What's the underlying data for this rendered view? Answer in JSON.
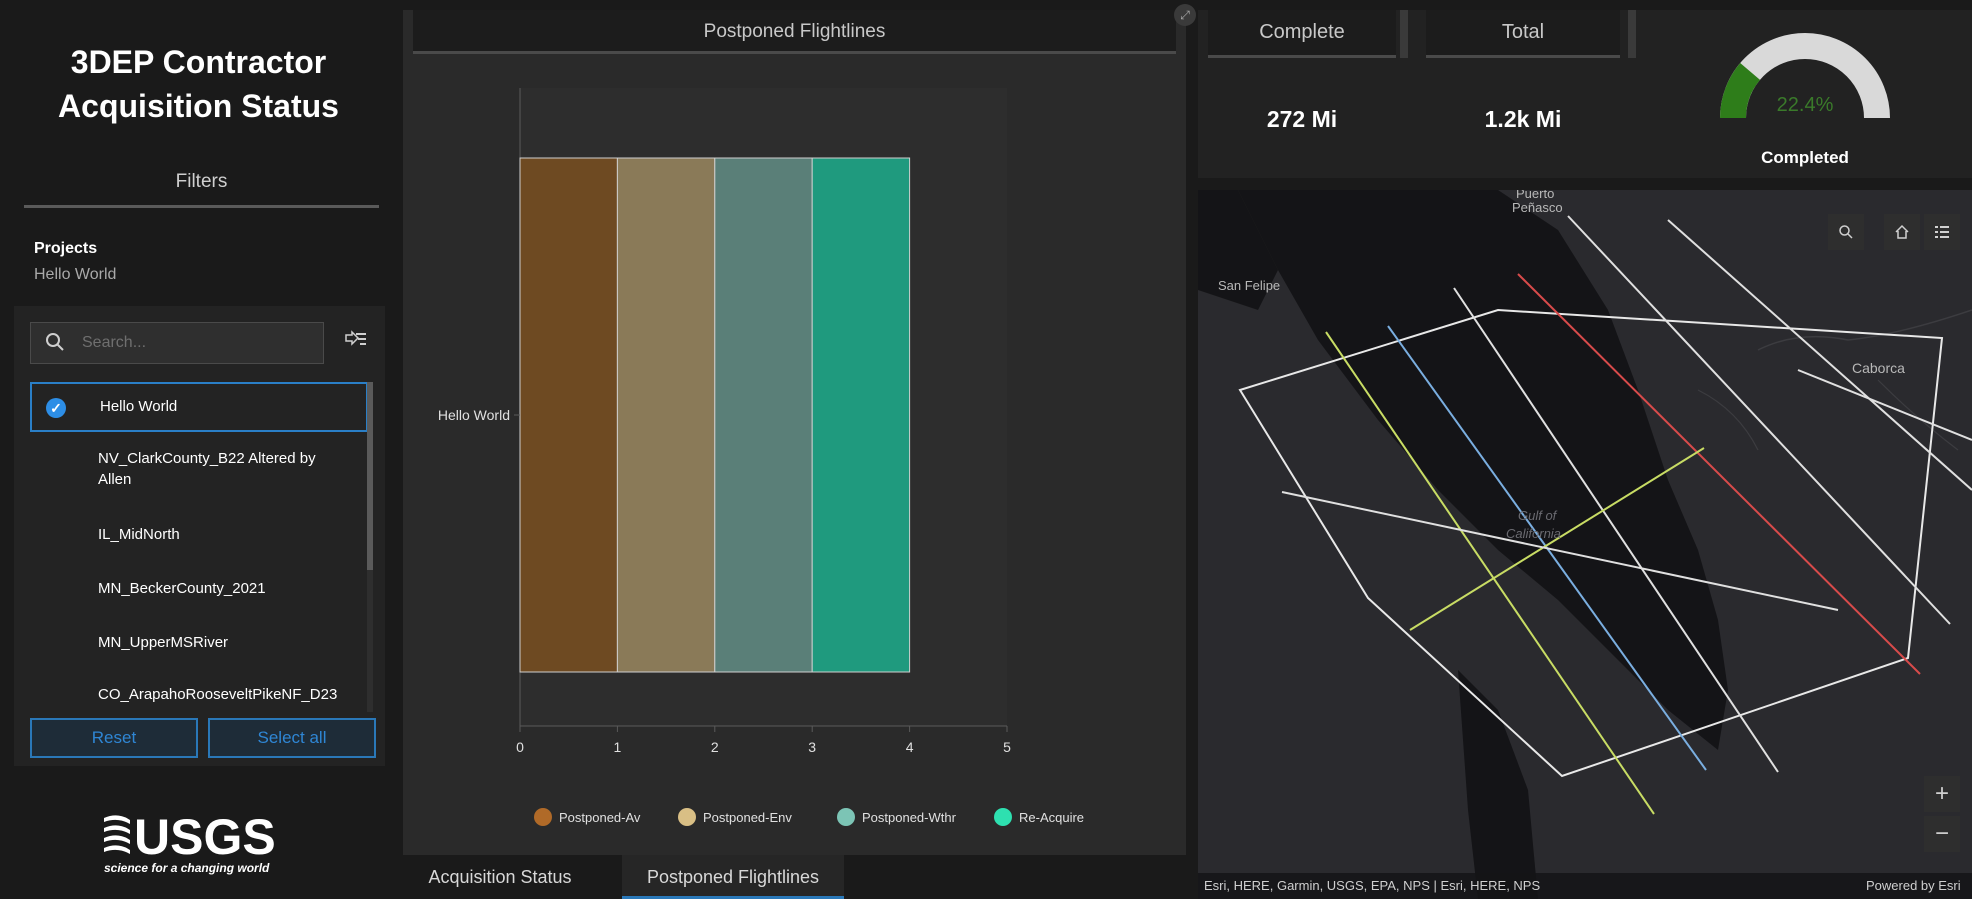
{
  "sidebar": {
    "title_line1": "3DEP Contractor",
    "title_line2": "Acquisition Status",
    "filters_header": "Filters",
    "projects_label": "Projects",
    "projects_value": "Hello World",
    "search_placeholder": "Search...",
    "items": [
      {
        "label": "Hello World",
        "selected": true
      },
      {
        "label": "NV_ClarkCounty_B22 Altered by",
        "label2": "Allen",
        "selected": false
      },
      {
        "label": "IL_MidNorth",
        "selected": false
      },
      {
        "label": "MN_BeckerCounty_2021",
        "selected": false
      },
      {
        "label": "MN_UpperMSRiver",
        "selected": false
      },
      {
        "label": "CO_ArapahoRooseveltPikeNF_D23",
        "selected": false
      }
    ],
    "reset_label": "Reset",
    "select_all_label": "Select all",
    "logo_text": "USGS",
    "logo_tagline": "science for a changing world"
  },
  "chart_panel": {
    "header": "Postponed Flightlines",
    "tabs": [
      {
        "label": "Acquisition Status",
        "active": false
      },
      {
        "label": "Postponed Flightlines",
        "active": true
      }
    ]
  },
  "chart_data": {
    "type": "bar",
    "orientation": "horizontal",
    "stacked": true,
    "categories": [
      "Hello World"
    ],
    "series": [
      {
        "name": "Postponed-Av",
        "values": [
          1
        ],
        "color": "#6e4a22"
      },
      {
        "name": "Postponed-Env",
        "values": [
          1
        ],
        "color": "#8a7a58"
      },
      {
        "name": "Postponed-Wthr",
        "values": [
          1
        ],
        "color": "#5a7f78"
      },
      {
        "name": "Re-Acquire",
        "values": [
          1
        ],
        "color": "#1f9a7e"
      }
    ],
    "legend_colors": [
      "#b06a28",
      "#d9bf85",
      "#7cc4b5",
      "#2ee0b0"
    ],
    "xlim": [
      0,
      5
    ],
    "xticks": [
      "0",
      "1",
      "2",
      "3",
      "4",
      "5"
    ],
    "grid": false,
    "legend_position": "bottom"
  },
  "stats": {
    "complete_label": "Complete",
    "complete_value": "272 Mi",
    "total_label": "Total",
    "total_value": "1.2k Mi",
    "gauge_percent": "22.4%",
    "gauge_fraction": 0.224,
    "gauge_label": "Completed",
    "gauge_color": "#2e7d1a"
  },
  "map": {
    "labels": {
      "puerto": "Puerto",
      "penasco": "Peñasco",
      "san_felipe": "San Felipe",
      "caborca": "Caborca",
      "gulf1": "Gulf of",
      "gulf2": "California"
    },
    "zoom_in": "+",
    "zoom_out": "−",
    "attribution_left": "Esri, HERE, Garmin, USGS, EPA, NPS | Esri, HERE, NPS",
    "attribution_right": "Powered by Esri"
  }
}
